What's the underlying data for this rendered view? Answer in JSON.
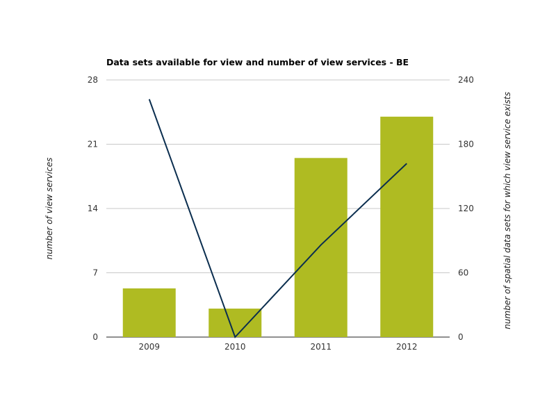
{
  "chart_data": {
    "type": "bar",
    "title": "Data sets available for view and number of view services - BE",
    "categories": [
      "2009",
      "2010",
      "2011",
      "2012"
    ],
    "ylabel_left": "number of view services",
    "ylabel_right": "number of spatial data sets for which view service exists",
    "ylim_left": [
      0,
      28
    ],
    "ylim_right": [
      0,
      240
    ],
    "yticks_left": [
      "0",
      "7",
      "14",
      "21",
      "28"
    ],
    "yticks_right": [
      "0",
      "60",
      "120",
      "180",
      "240"
    ],
    "grid": true,
    "series": [
      {
        "kind": "bar",
        "axis": "left",
        "color": "#afbb22",
        "values": [
          5.3,
          3.1,
          19.5,
          24.0
        ]
      },
      {
        "kind": "line",
        "axis": "right",
        "color": "#0b2e4f",
        "values": [
          222,
          0,
          86,
          162
        ]
      }
    ]
  }
}
